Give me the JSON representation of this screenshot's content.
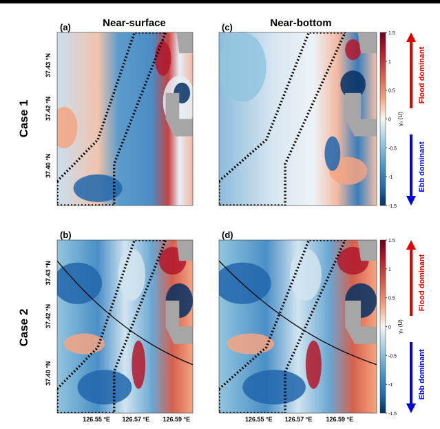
{
  "columns": [
    "Near-surface",
    "Near-bottom"
  ],
  "panels": [
    {
      "label": "(a)"
    },
    {
      "label": "(c)"
    },
    {
      "label": "(b)"
    },
    {
      "label": "(d)"
    }
  ],
  "rows": [
    "Case 1",
    "Case 2"
  ],
  "y_ticks": [
    "37.43 °N",
    "37.42 °N",
    "37.40 °N"
  ],
  "x_ticks": [
    "126.55 °E",
    "126.57 °E",
    "126.59 °E"
  ],
  "colorbar": {
    "label": "γ₀ (U)",
    "range": [
      -1.5,
      1.5
    ],
    "ticks": [
      1.5,
      1,
      0.5,
      0,
      -0.5,
      -1,
      -1.5
    ],
    "flood": "Flood dominant",
    "ebb": "Ebb dominant"
  }
}
